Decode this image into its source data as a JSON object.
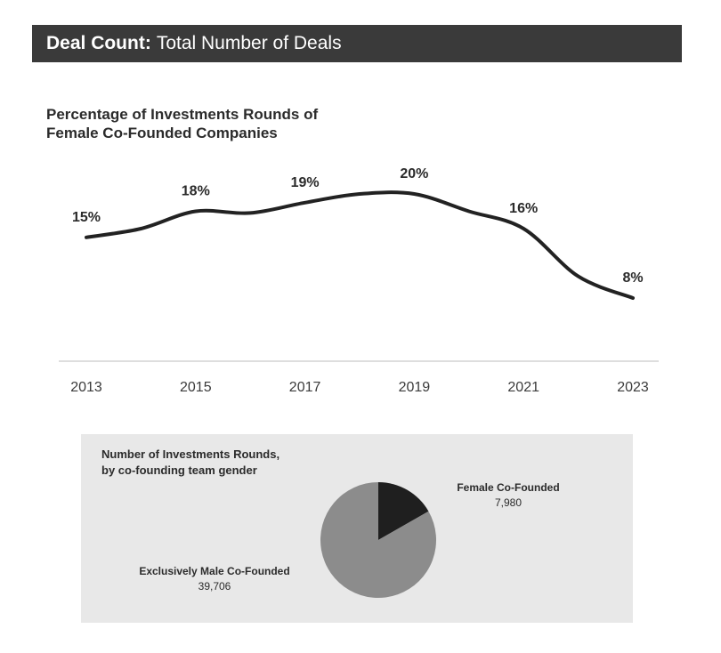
{
  "header": {
    "bold": "Deal Count:",
    "rest": "Total Number of Deals"
  },
  "chart_data": [
    {
      "type": "line",
      "title_line1": "Percentage of Investments Rounds of",
      "title_line2": "Female Co-Founded Companies",
      "x": [
        2013,
        2014,
        2015,
        2016,
        2017,
        2018,
        2019,
        2020,
        2021,
        2022,
        2023
      ],
      "y": [
        15,
        16,
        18,
        17.8,
        19,
        20,
        20,
        18,
        16,
        10.5,
        8
      ],
      "point_labels": [
        {
          "x": 2013,
          "y": 15,
          "label": "15%"
        },
        {
          "x": 2015,
          "y": 18,
          "label": "18%"
        },
        {
          "x": 2017,
          "y": 19,
          "label": "19%"
        },
        {
          "x": 2019,
          "y": 20,
          "label": "20%"
        },
        {
          "x": 2021,
          "y": 16,
          "label": "16%"
        },
        {
          "x": 2023,
          "y": 8,
          "label": "8%"
        }
      ],
      "x_ticks": [
        "2013",
        "2015",
        "2017",
        "2019",
        "2021",
        "2023"
      ],
      "ylim": [
        0,
        22
      ],
      "line_color": "#222222",
      "grid": false
    },
    {
      "type": "pie",
      "title_line1": "Number of Investments Rounds,",
      "title_line2": "by co-founding team gender",
      "slices": [
        {
          "label": "Female Co-Founded",
          "value": 7980,
          "display": "7,980",
          "color": "#1f1f1f"
        },
        {
          "label": "Exclusively Male Co-Founded",
          "value": 39706,
          "display": "39,706",
          "color": "#8c8c8c"
        }
      ]
    }
  ]
}
